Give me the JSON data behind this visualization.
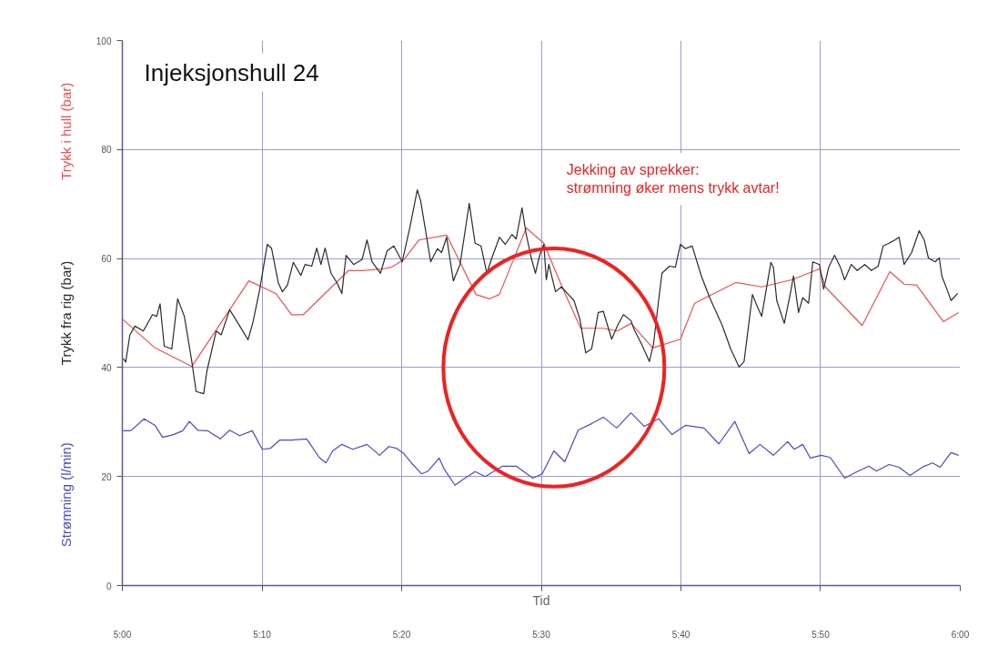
{
  "chart_data": {
    "type": "line",
    "title": "Injeksjonshull 24",
    "xlabel": "Tid",
    "xlim": [
      5,
      6
    ],
    "xticks": [
      {
        "value": 5,
        "label": "5:00"
      },
      {
        "value": 5.1667,
        "label": "5:10"
      },
      {
        "value": 5.3333,
        "label": "5:20"
      },
      {
        "value": 5.5,
        "label": "5:30"
      },
      {
        "value": 5.6667,
        "label": "5:40"
      },
      {
        "value": 5.8333,
        "label": "5:50"
      },
      {
        "value": 6,
        "label": "6:00"
      }
    ],
    "ylim": [
      0,
      100
    ],
    "yticks": [
      0,
      20,
      40,
      60,
      80,
      100
    ],
    "grid": true,
    "series": [
      {
        "name": "Trykk i hull (bar)",
        "color": "#f05050",
        "x": [
          5.0,
          5.039,
          5.083,
          5.151,
          5.183,
          5.202,
          5.216,
          5.27,
          5.286,
          5.311,
          5.321,
          5.336,
          5.354,
          5.387,
          5.422,
          5.438,
          5.45,
          5.482,
          5.503,
          5.524,
          5.547,
          5.574,
          5.591,
          5.607,
          5.633,
          5.666,
          5.683,
          5.732,
          5.763,
          5.799,
          5.832,
          5.839,
          5.883,
          5.916,
          5.933,
          5.948,
          5.98,
          5.998
        ],
        "values": [
          48.9,
          43.6,
          40.2,
          55.9,
          53.6,
          49.7,
          49.7,
          57.8,
          57.8,
          58.1,
          58.4,
          59.8,
          63.4,
          64.3,
          53.4,
          52.6,
          53.4,
          65.6,
          62.8,
          55.1,
          47.2,
          47.2,
          46.7,
          48.1,
          43.6,
          45.2,
          51.8,
          55.6,
          54.8,
          56.1,
          58.1,
          54.8,
          47.7,
          57.6,
          55.3,
          55.1,
          48.4,
          50.1
        ]
      },
      {
        "name": "Trykk fra rig (bar)",
        "color": "#2b2b2b",
        "x": [
          5.001,
          5.004,
          5.009,
          5.015,
          5.025,
          5.036,
          5.041,
          5.045,
          5.05,
          5.059,
          5.066,
          5.074,
          5.083,
          5.088,
          5.097,
          5.101,
          5.112,
          5.118,
          5.128,
          5.137,
          5.15,
          5.156,
          5.164,
          5.173,
          5.178,
          5.186,
          5.191,
          5.197,
          5.204,
          5.213,
          5.218,
          5.226,
          5.232,
          5.237,
          5.242,
          5.249,
          5.256,
          5.262,
          5.267,
          5.276,
          5.286,
          5.292,
          5.298,
          5.308,
          5.316,
          5.324,
          5.334,
          5.343,
          5.352,
          5.356,
          5.368,
          5.376,
          5.381,
          5.387,
          5.395,
          5.403,
          5.414,
          5.421,
          5.428,
          5.435,
          5.441,
          5.45,
          5.457,
          5.465,
          5.47,
          5.477,
          5.482,
          5.488,
          5.493,
          5.498,
          5.503,
          5.506,
          5.509,
          5.517,
          5.524,
          5.531,
          5.539,
          5.546,
          5.553,
          5.56,
          5.568,
          5.574,
          5.584,
          5.591,
          5.598,
          5.607,
          5.611,
          5.62,
          5.629,
          5.634,
          5.64,
          5.644,
          5.653,
          5.66,
          5.666,
          5.672,
          5.68,
          5.691,
          5.701,
          5.716,
          5.726,
          5.736,
          5.742,
          5.752,
          5.758,
          5.763,
          5.774,
          5.777,
          5.781,
          5.79,
          5.797,
          5.801,
          5.807,
          5.812,
          5.819,
          5.824,
          5.832,
          5.837,
          5.843,
          5.85,
          5.857,
          5.862,
          5.87,
          5.877,
          5.886,
          5.894,
          5.902,
          5.908,
          5.915,
          5.922,
          5.927,
          5.933,
          5.942,
          5.951,
          5.957,
          5.962,
          5.97,
          5.975,
          5.978,
          5.984,
          5.989,
          5.997
        ],
        "values": [
          41.7,
          41.0,
          46.0,
          47.6,
          46.7,
          49.7,
          49.4,
          51.7,
          43.9,
          43.4,
          52.6,
          49.4,
          41.0,
          35.6,
          35.2,
          39.4,
          46.7,
          46.0,
          50.6,
          48.4,
          45.1,
          48.4,
          54.4,
          62.6,
          61.9,
          55.6,
          53.9,
          55.1,
          59.3,
          56.9,
          58.9,
          58.6,
          61.9,
          58.9,
          61.9,
          57.3,
          55.6,
          53.6,
          60.6,
          58.9,
          59.8,
          63.4,
          59.4,
          57.3,
          61.4,
          62.3,
          59.4,
          65.6,
          72.6,
          70.6,
          59.4,
          61.8,
          61.1,
          63.9,
          55.9,
          58.9,
          70.1,
          62.8,
          62.3,
          57.3,
          60.1,
          63.9,
          62.6,
          64.4,
          63.6,
          69.3,
          64.4,
          60.1,
          57.3,
          60.6,
          62.6,
          56.1,
          58.9,
          53.9,
          54.8,
          53.6,
          52.3,
          48.9,
          42.7,
          43.4,
          50.1,
          50.3,
          45.2,
          47.7,
          49.7,
          48.6,
          46.9,
          44.2,
          41.1,
          44.4,
          52.3,
          57.3,
          58.6,
          58.4,
          62.6,
          61.8,
          62.3,
          56.8,
          52.8,
          47.7,
          43.4,
          40.1,
          41.1,
          53.4,
          51.1,
          49.4,
          59.3,
          58.4,
          52.3,
          48.1,
          53.4,
          56.8,
          50.1,
          52.8,
          51.8,
          59.4,
          58.9,
          54.4,
          58.4,
          60.6,
          58.4,
          56.1,
          58.9,
          57.8,
          58.9,
          57.8,
          58.6,
          62.3,
          62.8,
          63.4,
          63.9,
          58.9,
          61.1,
          65.1,
          63.4,
          60.1,
          59.4,
          60.1,
          56.8,
          54.4,
          52.3,
          53.6
        ]
      },
      {
        "name": "Strømning (l/min)",
        "color": "#4a4ac8",
        "x": [
          5.001,
          5.01,
          5.026,
          5.039,
          5.048,
          5.061,
          5.072,
          5.08,
          5.09,
          5.102,
          5.117,
          5.128,
          5.14,
          5.155,
          5.167,
          5.177,
          5.188,
          5.202,
          5.22,
          5.235,
          5.243,
          5.251,
          5.262,
          5.275,
          5.292,
          5.307,
          5.318,
          5.327,
          5.336,
          5.345,
          5.357,
          5.365,
          5.378,
          5.384,
          5.397,
          5.406,
          5.421,
          5.433,
          5.454,
          5.47,
          5.49,
          5.501,
          5.515,
          5.528,
          5.544,
          5.56,
          5.574,
          5.59,
          5.607,
          5.623,
          5.64,
          5.656,
          5.672,
          5.694,
          5.712,
          5.731,
          5.748,
          5.761,
          5.777,
          5.794,
          5.802,
          5.812,
          5.821,
          5.834,
          5.845,
          5.862,
          5.877,
          5.891,
          5.9,
          5.915,
          5.927,
          5.94,
          5.957,
          5.967,
          5.976,
          5.989,
          5.998
        ],
        "values": [
          28.4,
          28.4,
          30.6,
          29.4,
          27.2,
          27.7,
          28.4,
          30.1,
          28.5,
          28.4,
          26.9,
          28.5,
          27.5,
          28.4,
          25.0,
          25.2,
          26.7,
          26.7,
          26.9,
          23.5,
          22.5,
          24.7,
          25.9,
          25.0,
          25.9,
          23.9,
          25.5,
          25.2,
          24.2,
          22.5,
          20.5,
          21.0,
          23.4,
          21.4,
          18.4,
          19.4,
          20.9,
          20.0,
          21.9,
          21.9,
          19.7,
          20.5,
          24.7,
          22.7,
          28.5,
          29.7,
          30.9,
          28.9,
          31.7,
          29.2,
          30.6,
          27.7,
          29.4,
          28.9,
          26.0,
          30.1,
          24.2,
          25.9,
          23.9,
          26.4,
          25.0,
          25.9,
          23.4,
          23.9,
          23.5,
          19.7,
          20.9,
          21.9,
          21.0,
          22.2,
          21.7,
          20.2,
          21.9,
          22.5,
          21.7,
          24.4,
          23.9
        ]
      }
    ],
    "annotations": [
      "Jekking av sprekker:\nstrømning øker mens trykk avtar!"
    ]
  }
}
